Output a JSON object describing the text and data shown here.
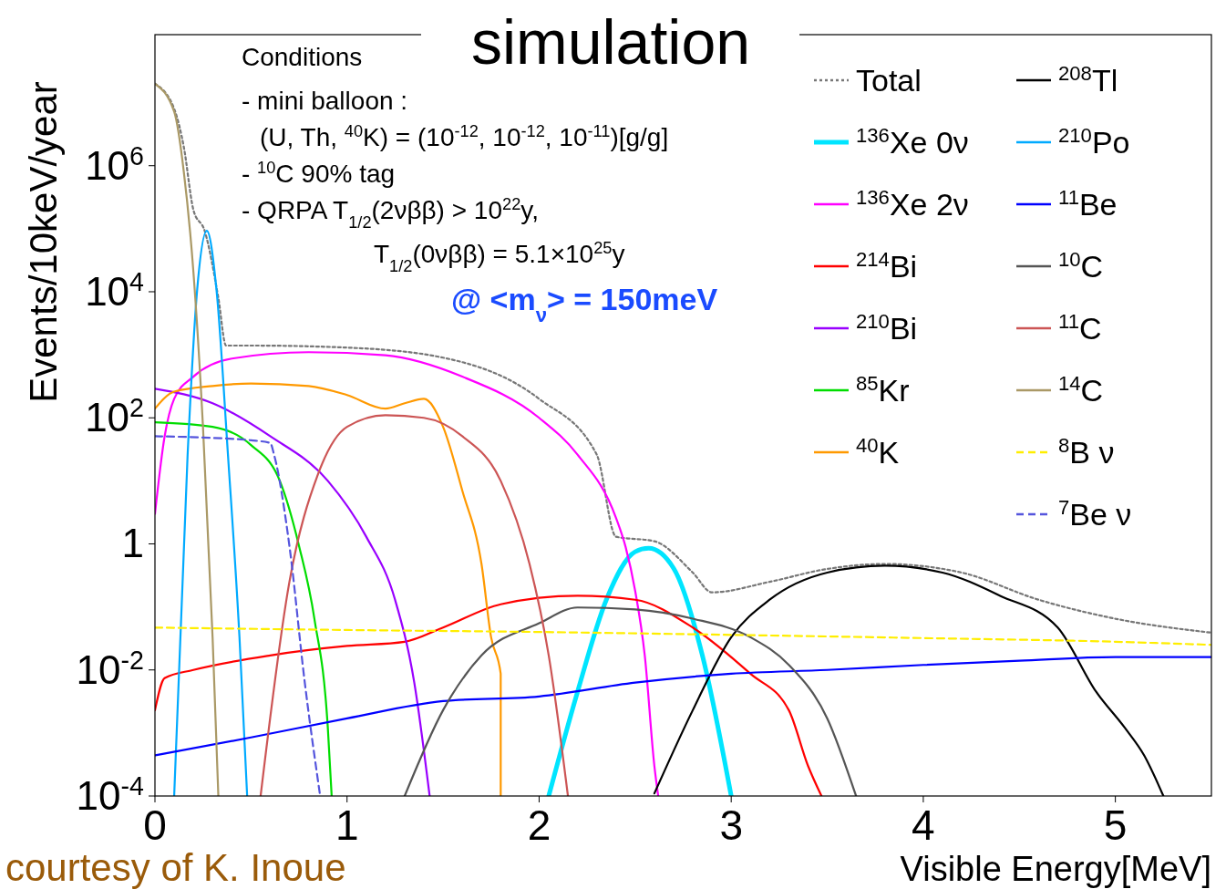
{
  "chart_data": {
    "type": "line",
    "title": "simulation",
    "xlabel": "Visible Energy[MeV]",
    "ylabel": "Events/10keV/year",
    "log": "y",
    "xlim": [
      0,
      5.5
    ],
    "xticks": [
      0,
      1,
      2,
      3,
      4,
      5
    ],
    "ylim": [
      0.0001,
      120000000
    ],
    "yticks": [
      {
        "value": 0.0001,
        "label": "10$^{-4}$"
      },
      {
        "value": 0.01,
        "label": "10$^{-2}$"
      },
      1,
      {
        "value": 100,
        "label": "10$^{2}$"
      },
      {
        "value": 10000,
        "label": "10$^{4}$"
      },
      {
        "value": 1000000,
        "label": "10$^{6}$"
      }
    ],
    "legend": "top right",
    "grid": false,
    "annotations": [
      "Conditions",
      "- mini balloon :",
      "(U, Th, $^{40}$K) = (10$^{-12}$, 10$^{-12}$, 10$^{-11}$)[g/g]",
      "-  $^{10}$C 90% tag",
      "-  QRPA  T$_{1/2}$(2νββ) > 10$^{22}$y,",
      "T$_{1/2}$(0νββ) = 5.1×10$^{25}$y",
      "@ <m$_{ν}$> = 150meV",
      "courtesy of K. Inoue"
    ],
    "series": [
      {
        "name": "Total",
        "color": "#777777",
        "line_style": "dotted",
        "x": [
          0,
          0.1,
          0.15,
          0.2,
          0.26,
          0.33,
          0.37,
          0.5,
          1,
          1.5,
          2,
          2.3,
          2.4,
          2.6,
          2.8,
          2.9,
          3.2,
          3.5,
          3.8,
          4.2,
          4.6,
          5,
          5.5
        ],
        "values": [
          20000000,
          8000000,
          2000000,
          200000,
          90000,
          8000,
          1400,
          1400,
          1300,
          900,
          200,
          26,
          1.3,
          1.1,
          0.35,
          0.17,
          0.25,
          0.4,
          0.48,
          0.35,
          0.13,
          0.065,
          0.039
        ]
      },
      {
        "name": "$^{136}$Xe 0ν",
        "color": "#00e5ff",
        "line_style": "solid",
        "x": [
          2.05,
          2.2,
          2.35,
          2.5,
          2.57,
          2.7,
          2.85,
          3.0
        ],
        "values": [
          0.0001,
          0.0045,
          0.13,
          0.75,
          0.85,
          0.41,
          0.017,
          0.0001
        ]
      },
      {
        "name": "$^{136}$Xe 2ν",
        "color": "#ff00ff",
        "line_style": "solid",
        "x": [
          0,
          0.05,
          0.1,
          0.2,
          0.4,
          0.8,
          1.2,
          1.6,
          2.0,
          2.2,
          2.4,
          2.45,
          2.5,
          2.55,
          2.6,
          2.62
        ],
        "values": [
          3,
          50,
          200,
          450,
          870,
          1100,
          980,
          450,
          100,
          26,
          2.6,
          0.9,
          0.18,
          0.017,
          0.0003,
          0.0001
        ]
      },
      {
        "name": "$^{214}$Bi",
        "color": "#ff0000",
        "line_style": "solid",
        "x": [
          0,
          0.05,
          0.2,
          0.6,
          1.0,
          1.3,
          1.5,
          1.8,
          2.2,
          2.5,
          2.8,
          3.1,
          3.3,
          3.4,
          3.47
        ],
        "values": [
          0.0023,
          0.0074,
          0.01,
          0.017,
          0.024,
          0.028,
          0.047,
          0.11,
          0.15,
          0.13,
          0.047,
          0.0087,
          0.0023,
          0.0003,
          0.0001
        ]
      },
      {
        "name": "$^{210}$Bi",
        "color": "#9900ff",
        "line_style": "solid",
        "x": [
          0,
          0.3,
          0.6,
          0.9,
          1.1,
          1.25,
          1.35,
          1.43
        ],
        "values": [
          290,
          170,
          51,
          10,
          1.3,
          0.13,
          0.0063,
          0.0001
        ]
      },
      {
        "name": "$^{85}$Kr",
        "color": "#00dd00",
        "line_style": "solid",
        "x": [
          0,
          0.3,
          0.5,
          0.65,
          0.75,
          0.83,
          0.9,
          0.92
        ],
        "values": [
          85,
          72,
          37,
          10,
          0.93,
          0.065,
          0.0012,
          0.0001
        ]
      },
      {
        "name": "$^{40}$K",
        "color": "#ff9900",
        "line_style": "solid",
        "x": [
          0,
          0.1,
          0.3,
          0.5,
          0.8,
          1.0,
          1.2,
          1.3,
          1.4,
          1.5,
          1.6,
          1.7,
          1.75,
          1.8,
          1.8
        ],
        "values": [
          140,
          260,
          320,
          350,
          320,
          230,
          140,
          170,
          200,
          72,
          7,
          0.48,
          0.033,
          0.0087,
          0.0001
        ]
      },
      {
        "name": "$^{208}$Tl",
        "color": "#000000",
        "line_style": "solid",
        "x": [
          2.6,
          2.8,
          3.0,
          3.2,
          3.5,
          3.8,
          4.1,
          4.4,
          4.7,
          4.9,
          5.05,
          5.15,
          5.25
        ],
        "values": [
          0.00011,
          0.0023,
          0.033,
          0.13,
          0.35,
          0.45,
          0.35,
          0.15,
          0.047,
          0.0045,
          0.0012,
          0.00044,
          0.0001
        ]
      },
      {
        "name": "$^{210}$Po",
        "color": "#00aaff",
        "line_style": "solid",
        "x": [
          0.1,
          0.17,
          0.22,
          0.27,
          0.32,
          0.38,
          0.44,
          0.48
        ],
        "values": [
          0.0001,
          26,
          11000,
          93000,
          11000,
          26,
          0.033,
          0.0001
        ]
      },
      {
        "name": "$^{11}$Be",
        "color": "#0000ff",
        "line_style": "solid",
        "x": [
          0,
          0.5,
          1,
          1.5,
          2,
          2.5,
          3,
          3.5,
          4,
          4.5,
          5,
          5.5
        ],
        "values": [
          0.00044,
          0.00085,
          0.0017,
          0.0032,
          0.0038,
          0.0063,
          0.0087,
          0.01,
          0.012,
          0.014,
          0.016,
          0.016
        ]
      },
      {
        "name": "$^{10}$C",
        "color": "#555555",
        "line_style": "solid",
        "x": [
          1.3,
          1.5,
          1.7,
          2.0,
          2.2,
          2.5,
          2.8,
          3.1,
          3.3,
          3.5,
          3.65
        ],
        "values": [
          0.0001,
          0.0023,
          0.017,
          0.055,
          0.098,
          0.091,
          0.065,
          0.033,
          0.012,
          0.0017,
          0.0001
        ]
      },
      {
        "name": "$^{11}$C",
        "color": "#cc5555",
        "line_style": "solid",
        "x": [
          0.55,
          0.7,
          0.85,
          1.0,
          1.2,
          1.4,
          1.6,
          1.8,
          1.95,
          2.05,
          2.15
        ],
        "values": [
          0.0001,
          0.25,
          13,
          72,
          110,
          100,
          51,
          10,
          0.48,
          0.017,
          0.0001
        ]
      },
      {
        "name": "$^{14}$C",
        "color": "#aa9966",
        "line_style": "solid",
        "x": [
          0,
          0.1,
          0.15,
          0.2,
          0.25,
          0.3,
          0.33
        ],
        "values": [
          20000000,
          7200000,
          810000,
          21000,
          72,
          0.033,
          0.0001
        ]
      },
      {
        "name": "$^{8}$B ν",
        "color": "#ffee00",
        "line_style": "dashed",
        "x": [
          0,
          1,
          2,
          3,
          4,
          5,
          5.5
        ],
        "values": [
          0.047,
          0.043,
          0.04,
          0.036,
          0.032,
          0.028,
          0.025
        ]
      },
      {
        "name": "$^{7}$Be ν",
        "color": "#5555dd",
        "line_style": "dashed",
        "x": [
          0,
          0.3,
          0.5,
          0.6,
          0.62,
          0.7,
          0.78,
          0.86
        ],
        "values": [
          51,
          48,
          44,
          40,
          26,
          0.93,
          0.0063,
          0.0001
        ]
      }
    ]
  }
}
